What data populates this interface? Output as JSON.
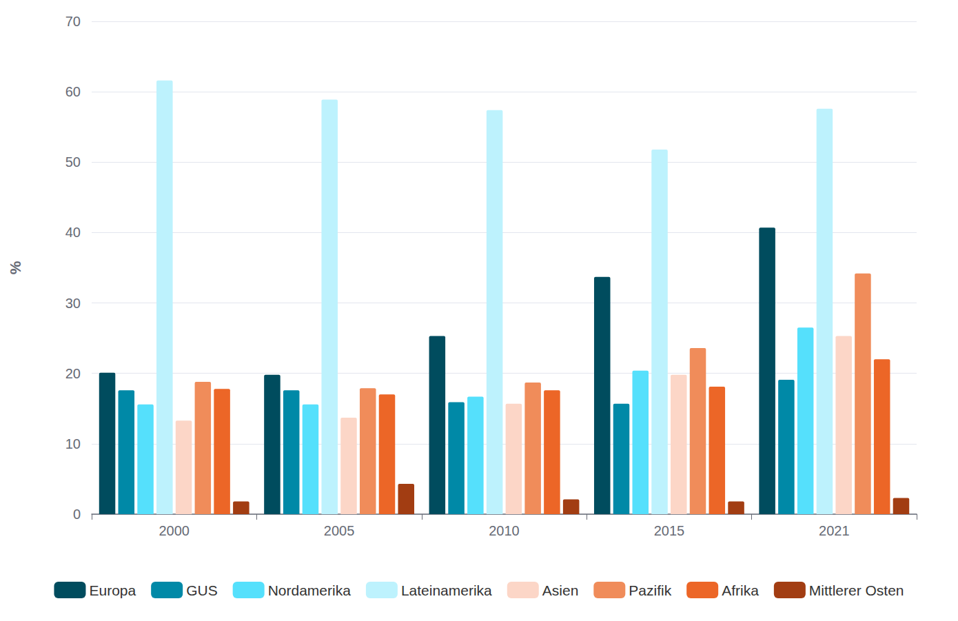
{
  "chart_data": {
    "type": "bar",
    "y_label": "%",
    "categories": [
      "2000",
      "2005",
      "2010",
      "2015",
      "2021"
    ],
    "series": [
      {
        "name": "Europa",
        "color": "#004c5e",
        "values": [
          20.1,
          19.8,
          25.3,
          33.7,
          40.7
        ]
      },
      {
        "name": "GUS",
        "color": "#0089a7",
        "values": [
          17.6,
          17.6,
          15.9,
          15.7,
          19.1
        ]
      },
      {
        "name": "Nordamerika",
        "color": "#55e0fc",
        "values": [
          15.6,
          15.6,
          16.7,
          20.4,
          26.5
        ]
      },
      {
        "name": "Lateinamerika",
        "color": "#bdf2fd",
        "values": [
          61.6,
          58.9,
          57.4,
          51.8,
          57.6
        ]
      },
      {
        "name": "Asien",
        "color": "#fcd6c7",
        "values": [
          13.3,
          13.7,
          15.7,
          19.8,
          25.3
        ]
      },
      {
        "name": "Pazifik",
        "color": "#f08c5a",
        "values": [
          18.8,
          17.9,
          18.7,
          23.6,
          34.2
        ]
      },
      {
        "name": "Afrika",
        "color": "#ec6627",
        "values": [
          17.8,
          17.0,
          17.6,
          18.1,
          22.0
        ]
      },
      {
        "name": "Mittlerer Osten",
        "color": "#a23d12",
        "values": [
          1.8,
          4.3,
          2.1,
          1.8,
          2.3
        ]
      }
    ],
    "ylim": [
      0,
      70
    ],
    "yticks": [
      0,
      10,
      20,
      30,
      40,
      50,
      60,
      70
    ],
    "grid": true,
    "legend": "bottom"
  }
}
